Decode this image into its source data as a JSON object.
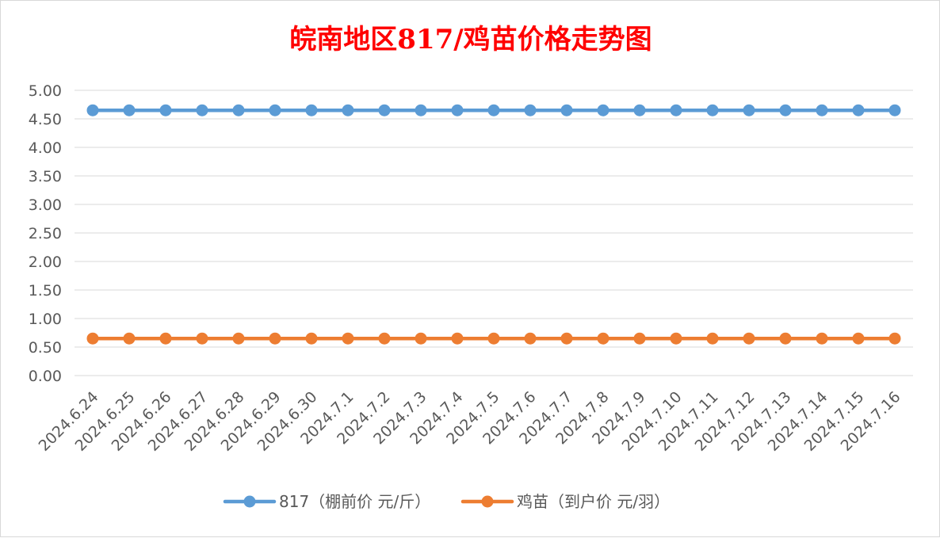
{
  "chart_data": {
    "type": "line",
    "title": "皖南地区817/鸡苗价格走势图",
    "categories": [
      "2024.6.24",
      "2024.6.25",
      "2024.6.26",
      "2024.6.27",
      "2024.6.28",
      "2024.6.29",
      "2024.6.30",
      "2024.7.1",
      "2024.7.2",
      "2024.7.3",
      "2024.7.4",
      "2024.7.5",
      "2024.7.6",
      "2024.7.7",
      "2024.7.8",
      "2024.7.9",
      "2024.7.10",
      "2024.7.11",
      "2024.7.12",
      "2024.7.13",
      "2024.7.14",
      "2024.7.15",
      "2024.7.16"
    ],
    "series": [
      {
        "name": "817（棚前价 元/斤）",
        "color": "#5b9bd5",
        "values": [
          4.65,
          4.65,
          4.65,
          4.65,
          4.65,
          4.65,
          4.65,
          4.65,
          4.65,
          4.65,
          4.65,
          4.65,
          4.65,
          4.65,
          4.65,
          4.65,
          4.65,
          4.65,
          4.65,
          4.65,
          4.65,
          4.65,
          4.65
        ]
      },
      {
        "name": "鸡苗（到户价 元/羽）",
        "color": "#ed7d31",
        "values": [
          0.65,
          0.65,
          0.65,
          0.65,
          0.65,
          0.65,
          0.65,
          0.65,
          0.65,
          0.65,
          0.65,
          0.65,
          0.65,
          0.65,
          0.65,
          0.65,
          0.65,
          0.65,
          0.65,
          0.65,
          0.65,
          0.65,
          0.65
        ]
      }
    ],
    "ylim": [
      0,
      5
    ],
    "yticks": [
      "0.00",
      "0.50",
      "1.00",
      "1.50",
      "2.00",
      "2.50",
      "3.00",
      "3.50",
      "4.00",
      "4.50",
      "5.00"
    ],
    "grid": true,
    "legend_position": "bottom"
  }
}
